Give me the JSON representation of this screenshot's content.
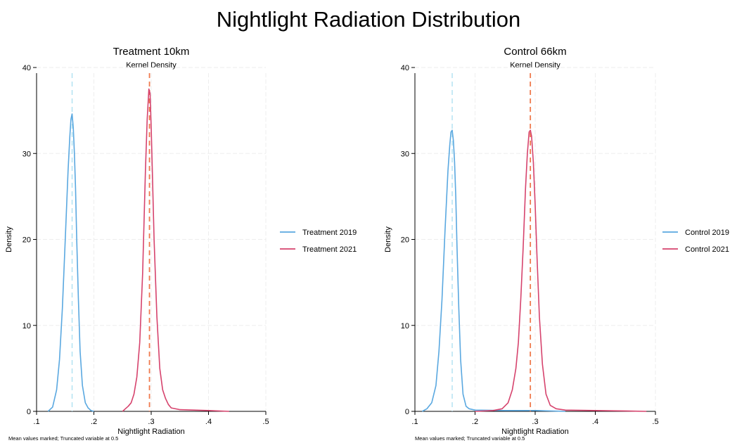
{
  "figure": {
    "title": "Nightlight Radiation Distribution"
  },
  "chart_data": [
    {
      "type": "line",
      "title": "Treatment 10km",
      "subtitle": "Kernel Density",
      "xlabel": "Nightlight Radiation",
      "ylabel": "Density",
      "note": "Mean values marked; Truncated variable at 0.5",
      "xlim": [
        0.1,
        0.5
      ],
      "ylim": [
        0,
        40
      ],
      "xticks": [
        0.1,
        0.2,
        0.3,
        0.4,
        0.5
      ],
      "xtick_labels": [
        ".1",
        ".2",
        ".3",
        ".4",
        ".5"
      ],
      "yticks": [
        0,
        10,
        20,
        30,
        40
      ],
      "ytick_labels": [
        "0",
        "10",
        "20",
        "30",
        "40"
      ],
      "grid": true,
      "legend_position": "right",
      "series": [
        {
          "name": "Treatment 2019",
          "color": "#5aa8e0",
          "mean": 0.162,
          "x": [
            0.12,
            0.128,
            0.135,
            0.14,
            0.145,
            0.15,
            0.155,
            0.158,
            0.16,
            0.162,
            0.164,
            0.166,
            0.168,
            0.17,
            0.173,
            0.176,
            0.18,
            0.185,
            0.19,
            0.195,
            0.2
          ],
          "y": [
            0,
            0.5,
            2.5,
            6,
            12,
            20,
            28,
            32,
            34,
            34.6,
            33,
            30,
            26,
            20,
            13,
            7,
            3,
            1,
            0.4,
            0.1,
            0
          ]
        },
        {
          "name": "Treatment 2021",
          "color": "#d6436d",
          "mean": 0.297,
          "x": [
            0.25,
            0.255,
            0.26,
            0.265,
            0.27,
            0.275,
            0.28,
            0.285,
            0.29,
            0.293,
            0.296,
            0.298,
            0.3,
            0.302,
            0.305,
            0.31,
            0.315,
            0.32,
            0.325,
            0.33,
            0.335,
            0.35,
            0.4,
            0.436
          ],
          "y": [
            0,
            0.3,
            0.6,
            1,
            2,
            4,
            8,
            16,
            28,
            34,
            37.5,
            37,
            33,
            28,
            20,
            11,
            5,
            2.5,
            1.5,
            0.8,
            0.4,
            0.2,
            0.1,
            0
          ]
        }
      ]
    },
    {
      "type": "line",
      "title": "Control 66km",
      "subtitle": "Kernel Density",
      "xlabel": "Nightlight Radiation",
      "ylabel": "Density",
      "note": "Mean values marked; Truncated variable at 0.5",
      "xlim": [
        0.1,
        0.5
      ],
      "ylim": [
        0,
        40
      ],
      "xticks": [
        0.1,
        0.2,
        0.3,
        0.4,
        0.5
      ],
      "xtick_labels": [
        ".1",
        ".2",
        ".3",
        ".4",
        ".5"
      ],
      "yticks": [
        0,
        10,
        20,
        30,
        40
      ],
      "ytick_labels": [
        "0",
        "10",
        "20",
        "30",
        "40"
      ],
      "grid": true,
      "legend_position": "right",
      "series": [
        {
          "name": "Control 2019",
          "color": "#5aa8e0",
          "mean": 0.162,
          "x": [
            0.112,
            0.12,
            0.128,
            0.135,
            0.14,
            0.145,
            0.15,
            0.155,
            0.158,
            0.16,
            0.162,
            0.164,
            0.166,
            0.168,
            0.17,
            0.173,
            0.176,
            0.18,
            0.185,
            0.19,
            0.2,
            0.25,
            0.3,
            0.35
          ],
          "y": [
            0,
            0.3,
            1,
            3,
            7,
            13,
            21,
            28,
            31,
            32.5,
            32.7,
            31.5,
            29,
            25,
            19,
            12,
            6,
            2,
            0.6,
            0.3,
            0.15,
            0.1,
            0.1,
            0
          ]
        },
        {
          "name": "Control 2021",
          "color": "#d6436d",
          "mean": 0.292,
          "x": [
            0.2,
            0.23,
            0.245,
            0.255,
            0.262,
            0.268,
            0.272,
            0.276,
            0.28,
            0.284,
            0.287,
            0.29,
            0.292,
            0.294,
            0.297,
            0.3,
            0.303,
            0.307,
            0.312,
            0.318,
            0.325,
            0.335,
            0.35,
            0.4,
            0.45,
            0.485
          ],
          "y": [
            0,
            0.1,
            0.3,
            1,
            2.5,
            5,
            8,
            13,
            19,
            26,
            30,
            32.5,
            32.7,
            32,
            29,
            24,
            18,
            11,
            5.5,
            2,
            0.7,
            0.3,
            0.15,
            0.1,
            0.05,
            0
          ]
        }
      ]
    }
  ]
}
